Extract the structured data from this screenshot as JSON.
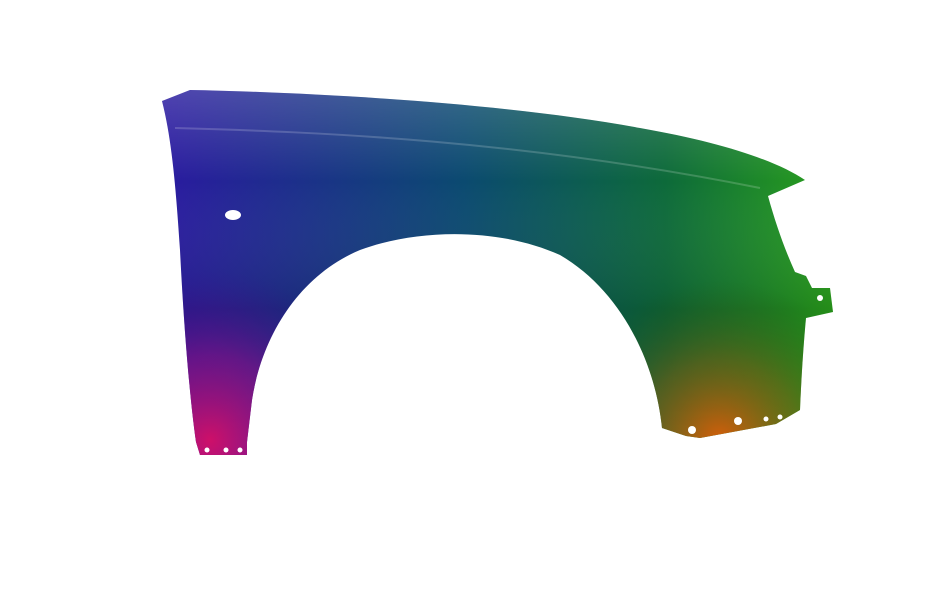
{
  "image": {
    "subject": "car-fender-icon",
    "colors": {
      "background": "#ffffff",
      "blue": "#2a1aa0",
      "teal": "#0b5a5e",
      "green": "#1f9a1e",
      "magenta": "#c0106a",
      "orange": "#c85a10"
    }
  }
}
